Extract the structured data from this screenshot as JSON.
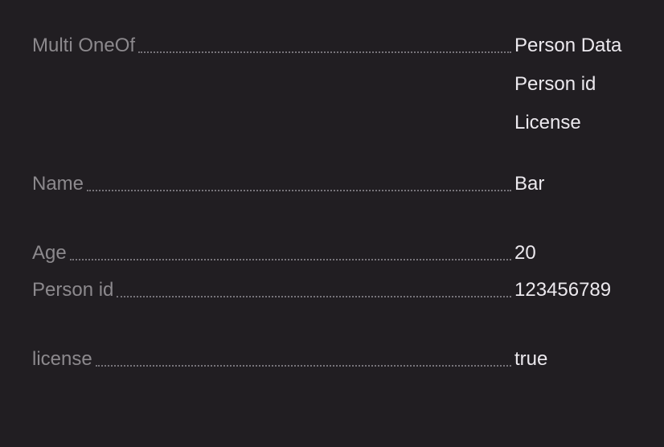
{
  "fields": {
    "multi_oneof": {
      "label": "Multi OneOf",
      "values": [
        "Person Data",
        "Person id",
        "License"
      ]
    },
    "name": {
      "label": "Name",
      "value": "Bar"
    },
    "age": {
      "label": "Age",
      "value": "20"
    },
    "person_id": {
      "label": "Person id",
      "value": "123456789"
    },
    "license": {
      "label": "license",
      "value": "true"
    }
  },
  "colors": {
    "background": "#211e22",
    "label": "#8c898d",
    "value": "#ece9ee",
    "leader": "#77747a"
  }
}
